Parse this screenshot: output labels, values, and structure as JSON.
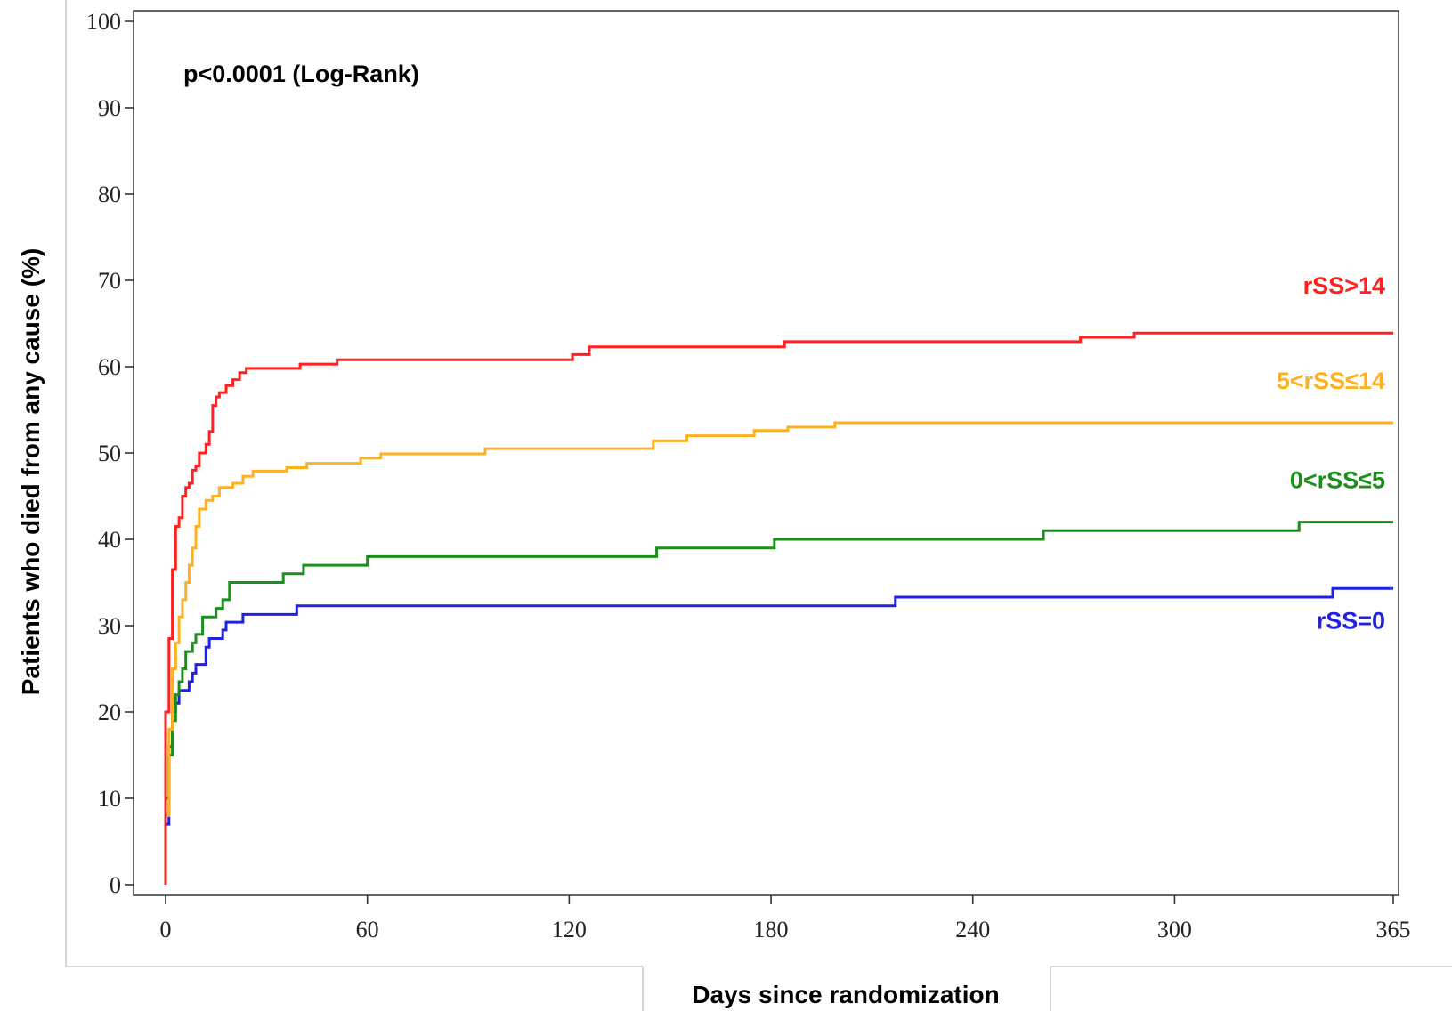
{
  "chart_data": {
    "type": "line",
    "title": "",
    "xlabel": "Days since randomization",
    "ylabel": "Patients who died from any cause (%)",
    "xlim": [
      0,
      365
    ],
    "ylim": [
      0,
      100
    ],
    "x_ticks": [
      0,
      60,
      120,
      180,
      240,
      300,
      365
    ],
    "y_ticks": [
      0,
      10,
      20,
      30,
      40,
      50,
      60,
      70,
      80,
      90,
      100
    ],
    "grid": false,
    "legend": "inline labels at right end of lines",
    "annotation": "p<0.0001 (Log-Rank)",
    "series": [
      {
        "name": "rSS>14",
        "color": "#ff2020",
        "points": [
          [
            0,
            0
          ],
          [
            0,
            20
          ],
          [
            1,
            20
          ],
          [
            1,
            28.5
          ],
          [
            2,
            28.5
          ],
          [
            2,
            36.5
          ],
          [
            3,
            36.5
          ],
          [
            3,
            41.5
          ],
          [
            4,
            41.5
          ],
          [
            4,
            42.5
          ],
          [
            5,
            42.5
          ],
          [
            5,
            45
          ],
          [
            6,
            45
          ],
          [
            6,
            46
          ],
          [
            7,
            46
          ],
          [
            7,
            46.5
          ],
          [
            8,
            46.5
          ],
          [
            8,
            48
          ],
          [
            9,
            48
          ],
          [
            9,
            48.5
          ],
          [
            10,
            48.5
          ],
          [
            10,
            50
          ],
          [
            12,
            50
          ],
          [
            12,
            51
          ],
          [
            13,
            51
          ],
          [
            13,
            52.5
          ],
          [
            14,
            52.5
          ],
          [
            14,
            55.5
          ],
          [
            15,
            55.5
          ],
          [
            15,
            56.5
          ],
          [
            16,
            56.5
          ],
          [
            16,
            57
          ],
          [
            18,
            57
          ],
          [
            18,
            57.8
          ],
          [
            20,
            57.8
          ],
          [
            20,
            58.5
          ],
          [
            22,
            58.5
          ],
          [
            22,
            59.3
          ],
          [
            24,
            59.3
          ],
          [
            24,
            59.8
          ],
          [
            40,
            59.8
          ],
          [
            40,
            60.3
          ],
          [
            51,
            60.3
          ],
          [
            51,
            60.8
          ],
          [
            121,
            60.8
          ],
          [
            121,
            61.4
          ],
          [
            126,
            61.4
          ],
          [
            126,
            62.3
          ],
          [
            184,
            62.3
          ],
          [
            184,
            62.9
          ],
          [
            272,
            62.9
          ],
          [
            272,
            63.4
          ],
          [
            288,
            63.4
          ],
          [
            288,
            63.9
          ],
          [
            365,
            63.9
          ]
        ]
      },
      {
        "name": "5<rSS≤14",
        "color": "#ffb020",
        "points": [
          [
            0,
            0
          ],
          [
            0,
            8
          ],
          [
            1,
            8
          ],
          [
            1,
            18
          ],
          [
            2,
            18
          ],
          [
            2,
            25
          ],
          [
            3,
            25
          ],
          [
            3,
            28
          ],
          [
            4,
            28
          ],
          [
            4,
            31
          ],
          [
            5,
            31
          ],
          [
            5,
            33
          ],
          [
            6,
            33
          ],
          [
            6,
            35
          ],
          [
            7,
            35
          ],
          [
            7,
            37
          ],
          [
            8,
            37
          ],
          [
            8,
            39
          ],
          [
            9,
            39
          ],
          [
            9,
            41.5
          ],
          [
            10,
            41.5
          ],
          [
            10,
            43.5
          ],
          [
            12,
            43.5
          ],
          [
            12,
            44.5
          ],
          [
            14,
            44.5
          ],
          [
            14,
            45
          ],
          [
            16,
            45
          ],
          [
            16,
            46
          ],
          [
            20,
            46
          ],
          [
            20,
            46.5
          ],
          [
            23,
            46.5
          ],
          [
            23,
            47.3
          ],
          [
            26,
            47.3
          ],
          [
            26,
            47.9
          ],
          [
            36,
            47.9
          ],
          [
            36,
            48.3
          ],
          [
            42,
            48.3
          ],
          [
            42,
            48.8
          ],
          [
            58,
            48.8
          ],
          [
            58,
            49.4
          ],
          [
            64,
            49.4
          ],
          [
            64,
            49.9
          ],
          [
            95,
            49.9
          ],
          [
            95,
            50.5
          ],
          [
            145,
            50.5
          ],
          [
            145,
            51.4
          ],
          [
            155,
            51.4
          ],
          [
            155,
            52
          ],
          [
            175,
            52
          ],
          [
            175,
            52.6
          ],
          [
            185,
            52.6
          ],
          [
            185,
            53
          ],
          [
            199,
            53
          ],
          [
            199,
            53.5
          ],
          [
            365,
            53.5
          ]
        ]
      },
      {
        "name": "0<rSS≤5",
        "color": "#1a8f1a",
        "points": [
          [
            0,
            0
          ],
          [
            0,
            10
          ],
          [
            1,
            10
          ],
          [
            1,
            15
          ],
          [
            2,
            15
          ],
          [
            2,
            19
          ],
          [
            3,
            19
          ],
          [
            3,
            22
          ],
          [
            4,
            22
          ],
          [
            4,
            23.5
          ],
          [
            5,
            23.5
          ],
          [
            5,
            25
          ],
          [
            6,
            25
          ],
          [
            6,
            27
          ],
          [
            8,
            27
          ],
          [
            8,
            28
          ],
          [
            9,
            28
          ],
          [
            9,
            29
          ],
          [
            11,
            29
          ],
          [
            11,
            31
          ],
          [
            15,
            31
          ],
          [
            15,
            32
          ],
          [
            17,
            32
          ],
          [
            17,
            33
          ],
          [
            19,
            33
          ],
          [
            19,
            35
          ],
          [
            35,
            35
          ],
          [
            35,
            36
          ],
          [
            41,
            36
          ],
          [
            41,
            37
          ],
          [
            60,
            37
          ],
          [
            60,
            38
          ],
          [
            146,
            38
          ],
          [
            146,
            39
          ],
          [
            181,
            39
          ],
          [
            181,
            40
          ],
          [
            261,
            40
          ],
          [
            261,
            41
          ],
          [
            337,
            41
          ],
          [
            337,
            42
          ],
          [
            365,
            42
          ]
        ]
      },
      {
        "name": "rSS=0",
        "color": "#2020e0",
        "points": [
          [
            0,
            0
          ],
          [
            0,
            7
          ],
          [
            1,
            7
          ],
          [
            1,
            16
          ],
          [
            2,
            16
          ],
          [
            2,
            20
          ],
          [
            3,
            20
          ],
          [
            3,
            21
          ],
          [
            4,
            21
          ],
          [
            4,
            22.5
          ],
          [
            7,
            22.5
          ],
          [
            7,
            23.5
          ],
          [
            8,
            23.5
          ],
          [
            8,
            24.5
          ],
          [
            9,
            24.5
          ],
          [
            9,
            25.5
          ],
          [
            12,
            25.5
          ],
          [
            12,
            27.5
          ],
          [
            13,
            27.5
          ],
          [
            13,
            28.5
          ],
          [
            17,
            28.5
          ],
          [
            17,
            29.5
          ],
          [
            18,
            29.5
          ],
          [
            18,
            30.4
          ],
          [
            23,
            30.4
          ],
          [
            23,
            31.3
          ],
          [
            39,
            31.3
          ],
          [
            39,
            32.3
          ],
          [
            217,
            32.3
          ],
          [
            217,
            33.3
          ],
          [
            347,
            33.3
          ],
          [
            347,
            34.3
          ],
          [
            365,
            34.3
          ]
        ]
      }
    ]
  }
}
